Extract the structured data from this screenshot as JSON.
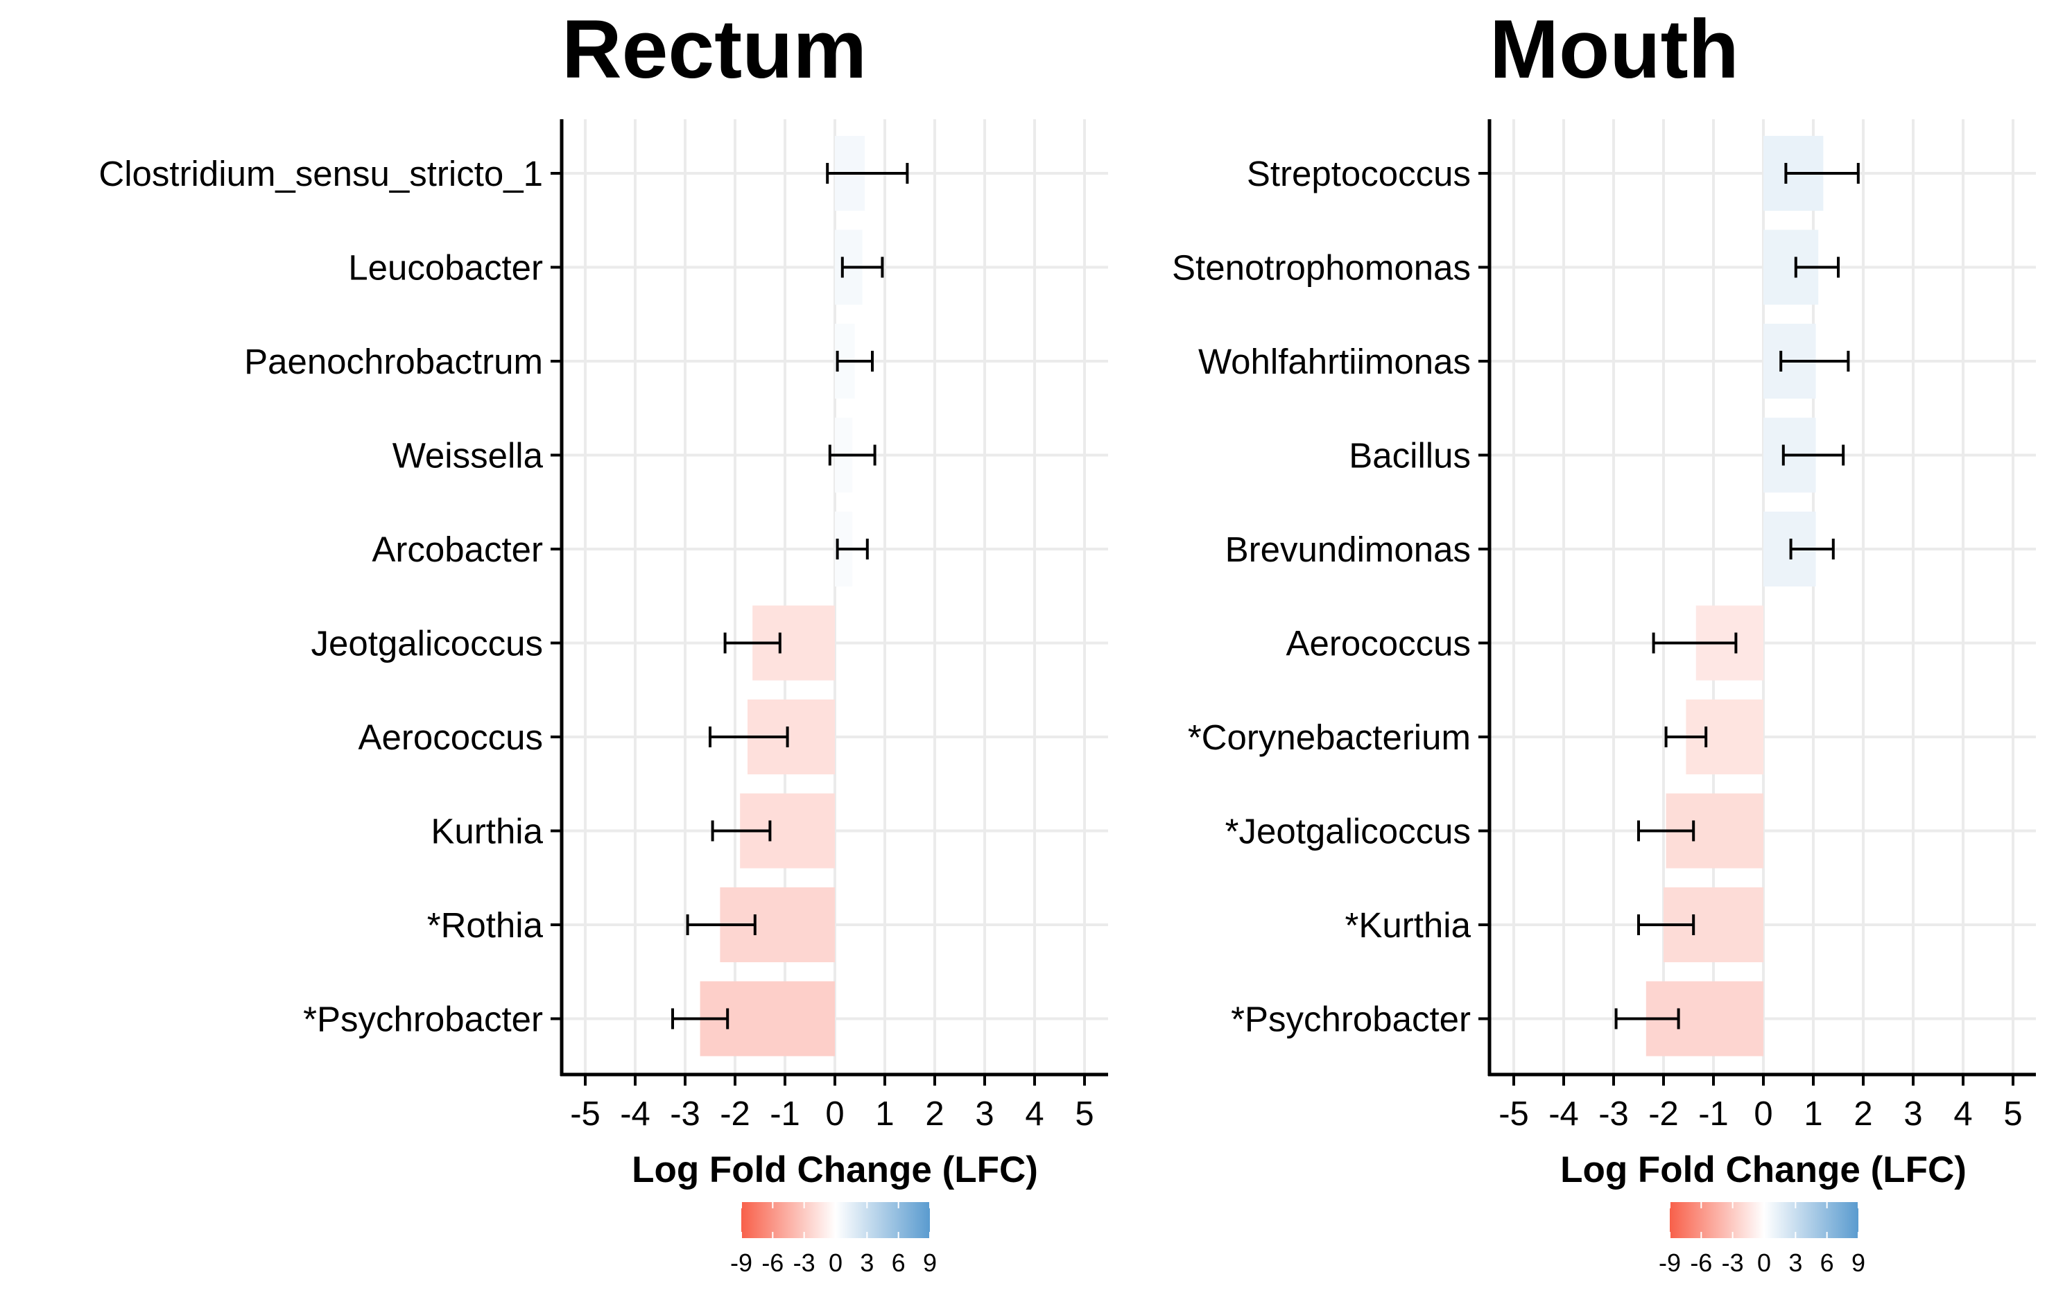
{
  "chart_data": [
    {
      "type": "bar",
      "orientation": "horizontal",
      "title": "Rectum",
      "xlabel": "Log Fold Change (LFC)",
      "ylabel": "",
      "xlim": [
        -5,
        5
      ],
      "xticks": [
        "-5",
        "-4",
        "-3",
        "-2",
        "-1",
        "0",
        "1",
        "2",
        "3",
        "4",
        "5"
      ],
      "grid": true,
      "categories": [
        "Clostridium_sensu_stricto_1",
        "Leucobacter",
        "Paenochrobactrum",
        "Weissella",
        "Arcobacter",
        "Jeotgalicoccus",
        "Aerococcus",
        "Kurthia",
        "*Rothia",
        "*Psychrobacter"
      ],
      "values": [
        0.6,
        0.55,
        0.4,
        0.35,
        0.35,
        -1.65,
        -1.75,
        -1.9,
        -2.3,
        -2.7
      ],
      "error_low": [
        -0.15,
        0.15,
        0.05,
        -0.1,
        0.05,
        -2.2,
        -2.5,
        -2.45,
        -2.95,
        -3.25
      ],
      "error_high": [
        1.45,
        0.95,
        0.75,
        0.8,
        0.65,
        -1.1,
        -0.95,
        -1.3,
        -1.6,
        -2.15
      ],
      "legend": {
        "type": "colorbar",
        "ticks": [
          "-9",
          "-6",
          "-3",
          "0",
          "3",
          "6",
          "9"
        ],
        "position": "bottom"
      },
      "colors": {
        "negative": "#F8604A",
        "neutral": "#FFFFFF",
        "positive": "#5A9BCF"
      }
    },
    {
      "type": "bar",
      "orientation": "horizontal",
      "title": "Mouth",
      "xlabel": "Log Fold Change (LFC)",
      "ylabel": "",
      "xlim": [
        -5,
        5
      ],
      "xticks": [
        "-5",
        "-4",
        "-3",
        "-2",
        "-1",
        "0",
        "1",
        "2",
        "3",
        "4",
        "5"
      ],
      "grid": true,
      "categories": [
        "Streptococcus",
        "Stenotrophomonas",
        "Wohlfahrtiimonas",
        "Bacillus",
        "Brevundimonas",
        "Aerococcus",
        "*Corynebacterium",
        "*Jeotgalicoccus",
        "*Kurthia",
        "*Psychrobacter"
      ],
      "values": [
        1.2,
        1.1,
        1.05,
        1.05,
        1.05,
        -1.35,
        -1.55,
        -1.95,
        -2.0,
        -2.35
      ],
      "error_low": [
        0.45,
        0.65,
        0.35,
        0.4,
        0.55,
        -2.2,
        -1.95,
        -2.5,
        -2.5,
        -2.95
      ],
      "error_high": [
        1.9,
        1.5,
        1.7,
        1.6,
        1.4,
        -0.55,
        -1.15,
        -1.4,
        -1.4,
        -1.7
      ],
      "legend": {
        "type": "colorbar",
        "ticks": [
          "-9",
          "-6",
          "-3",
          "0",
          "3",
          "6",
          "9"
        ],
        "position": "bottom"
      },
      "colors": {
        "negative": "#F8604A",
        "neutral": "#FFFFFF",
        "positive": "#5A9BCF"
      }
    }
  ]
}
